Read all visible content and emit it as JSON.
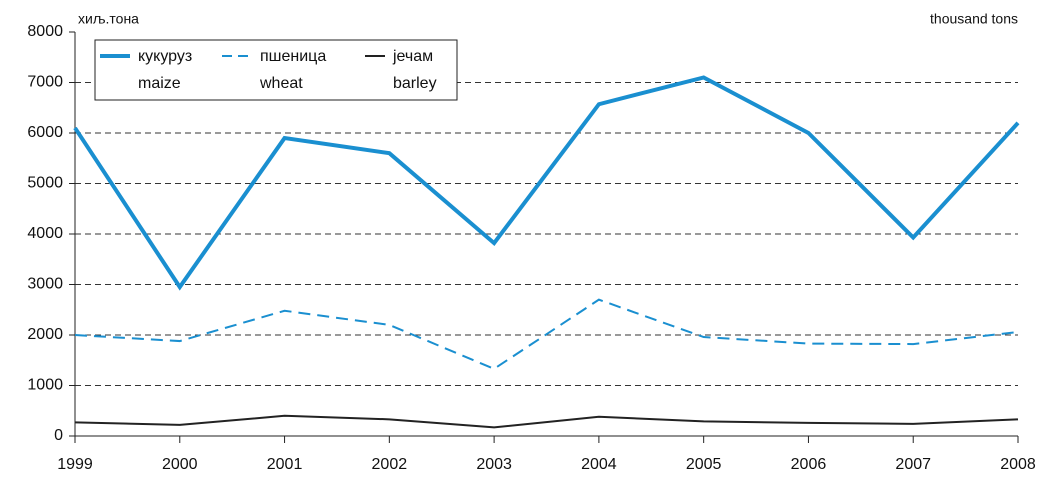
{
  "chart_data": {
    "type": "line",
    "y_unit_label": "хиљ.тона",
    "y_unit_label_en": "thousand tons",
    "x": [
      1999,
      2000,
      2001,
      2002,
      2003,
      2004,
      2005,
      2006,
      2007,
      2008
    ],
    "xlim": [
      1999,
      2008
    ],
    "xticks": [
      1999,
      2000,
      2001,
      2002,
      2003,
      2004,
      2005,
      2006,
      2007,
      2008
    ],
    "ylim": [
      0,
      8000
    ],
    "yticks": [
      0,
      1000,
      2000,
      3000,
      4000,
      5000,
      6000,
      7000,
      8000
    ],
    "grid": true,
    "legend": "upper left",
    "series": [
      {
        "name": "кукуруз",
        "name_en": "maize",
        "color": "#1a8fd0",
        "style": "solid",
        "width": 4,
        "values": [
          6100,
          2950,
          5900,
          5600,
          3820,
          6570,
          7100,
          6000,
          3930,
          6200
        ]
      },
      {
        "name": "пшеница",
        "name_en": "wheat",
        "color": "#1a8fd0",
        "style": "dashed",
        "width": 2,
        "values": [
          2000,
          1880,
          2480,
          2200,
          1330,
          2700,
          1960,
          1830,
          1820,
          2060
        ]
      },
      {
        "name": "јечам",
        "name_en": "barley",
        "color": "#222222",
        "style": "solid",
        "width": 2,
        "values": [
          270,
          220,
          400,
          330,
          170,
          380,
          290,
          260,
          240,
          330
        ]
      }
    ]
  }
}
